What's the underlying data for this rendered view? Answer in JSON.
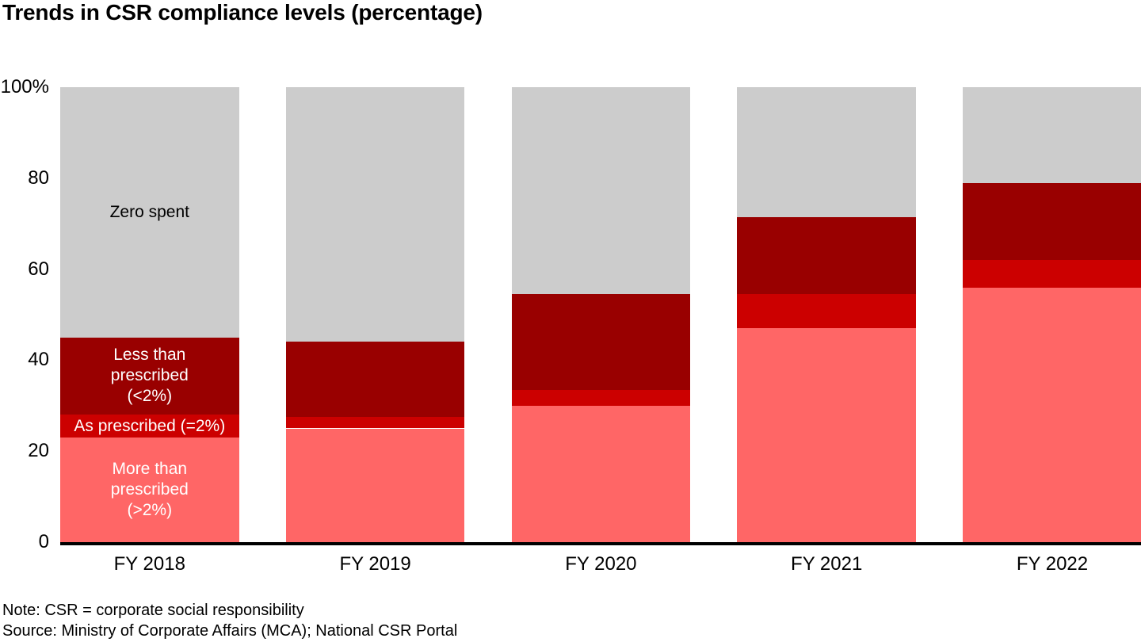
{
  "title": "Trends in CSR compliance levels (percentage)",
  "note": "Note: CSR = corporate social responsibility",
  "source": "Source: Ministry of Corporate Affairs (MCA); National CSR Portal",
  "colors": {
    "more_than_prescribed": "#FF6666",
    "as_prescribed": "#CC0000",
    "less_than_prescribed": "#990000",
    "zero_spent": "#CCCCCC",
    "axis": "#000000",
    "background": "#FFFFFF"
  },
  "chart_data": {
    "type": "bar",
    "stacked": true,
    "title": "Trends in CSR compliance levels (percentage)",
    "xlabel": "",
    "ylabel": "",
    "ylim": [
      0,
      100
    ],
    "grid": false,
    "legend_position": "inside-first-bar",
    "categories": [
      "FY 2018",
      "FY 2019",
      "FY 2020",
      "FY 2021",
      "FY 2022"
    ],
    "ytick_values": [
      0,
      20,
      40,
      60,
      80,
      100
    ],
    "ytick_labels": [
      "0",
      "20",
      "40",
      "60",
      "80",
      "100%"
    ],
    "label_bar_index": 0,
    "series": [
      {
        "key": "more-than-prescribed",
        "name": "More than prescribed (>2%)",
        "color": "#FF6666",
        "label_lines": [
          "More than",
          "prescribed",
          "(>2%)"
        ],
        "label_color": "#FFFFFF",
        "values": [
          23,
          25,
          30,
          47,
          56
        ]
      },
      {
        "key": "as-prescribed",
        "name": "As prescribed (=2%)",
        "color": "#CC0000",
        "label_lines": [
          "As prescribed (=2%)"
        ],
        "label_color": "#FFFFFF",
        "values": [
          5,
          2.5,
          3.5,
          7.5,
          6
        ]
      },
      {
        "key": "less-than-prescribed",
        "name": "Less than prescribed (<2%)",
        "color": "#990000",
        "label_lines": [
          "Less than",
          "prescribed",
          "(<2%)"
        ],
        "label_color": "#FFFFFF",
        "values": [
          17,
          16.5,
          21,
          17,
          17
        ]
      },
      {
        "key": "zero-spent",
        "name": "Zero spent",
        "color": "#CCCCCC",
        "label_lines": [
          "Zero spent"
        ],
        "label_color": "#000000",
        "values": [
          55,
          56,
          45.5,
          28.5,
          21
        ]
      }
    ]
  }
}
